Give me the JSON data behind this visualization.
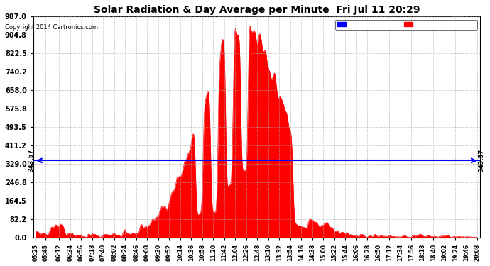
{
  "title": "Solar Radiation & Day Average per Minute  Fri Jul 11 20:29",
  "copyright": "Copyright 2014 Cartronics.com",
  "median_value": 343.57,
  "y_max": 987.0,
  "y_ticks": [
    0.0,
    82.2,
    164.5,
    246.8,
    329.0,
    411.2,
    493.5,
    575.8,
    658.0,
    740.2,
    822.5,
    904.8,
    987.0
  ],
  "background_color": "#ffffff",
  "plot_bg_color": "#ffffff",
  "fill_color": "#ff0000",
  "line_color": "#ff0000",
  "median_line_color": "#0000ff",
  "grid_color": "#aaaaaa",
  "title_color": "#000000",
  "legend_median_bg": "#0000ff",
  "legend_radiation_bg": "#ff0000",
  "x_tick_labels": [
    "05:25",
    "05:45",
    "06:12",
    "06:34",
    "06:56",
    "07:18",
    "07:40",
    "08:02",
    "08:24",
    "08:46",
    "09:08",
    "09:30",
    "09:52",
    "10:14",
    "10:36",
    "10:58",
    "11:20",
    "11:42",
    "12:04",
    "12:26",
    "12:48",
    "13:10",
    "13:32",
    "13:54",
    "14:16",
    "14:38",
    "15:00",
    "15:22",
    "15:44",
    "16:06",
    "16:28",
    "16:50",
    "17:12",
    "17:34",
    "17:56",
    "18:18",
    "18:40",
    "19:02",
    "19:24",
    "19:46",
    "20:08"
  ],
  "n_points": 900
}
